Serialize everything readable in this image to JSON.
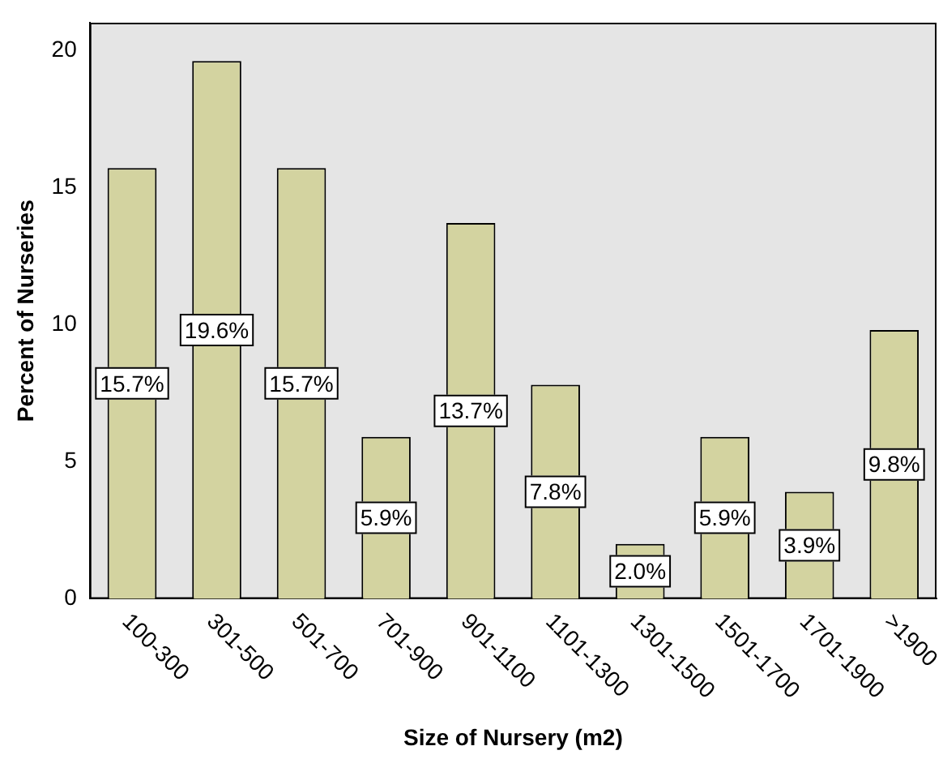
{
  "chart_data": {
    "type": "bar",
    "xlabel": "Size of Nursery (m2)",
    "ylabel": "Percent of Nurseries",
    "categories": [
      "100-300",
      "301-500",
      "501-700",
      "701-900",
      "901-1100",
      "1101-1300",
      "1301-1500",
      "1501-1700",
      "1701-1900",
      ">1900"
    ],
    "values": [
      15.7,
      19.6,
      15.7,
      5.9,
      13.7,
      7.8,
      2.0,
      5.9,
      3.9,
      9.8
    ],
    "value_labels": [
      "15.7%",
      "19.6%",
      "15.7%",
      "5.9%",
      "13.7%",
      "7.8%",
      "2.0%",
      "5.9%",
      "3.9%",
      "9.8%"
    ],
    "color": "#d3d3a0",
    "ylim": [
      0,
      21
    ],
    "yticks": [
      0,
      5,
      10,
      15,
      20
    ],
    "grid": false,
    "legend": false
  }
}
